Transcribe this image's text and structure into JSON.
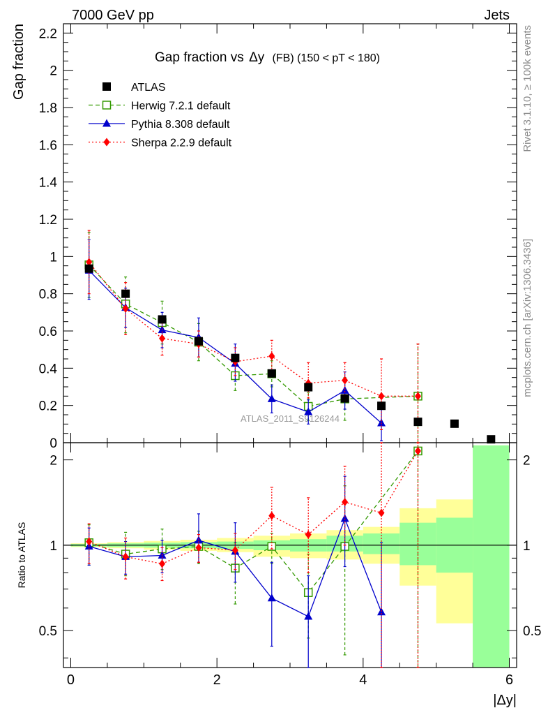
{
  "header": {
    "left": "7000 GeV pp",
    "right": "Jets"
  },
  "side_labels": {
    "rivet": "Rivet 3.1.10, ≥ 100k events",
    "mcplots": "mcplots.cern.ch [arXiv:1306.3436]"
  },
  "chart_data": {
    "type": "scatter",
    "title": "Gap fraction vs Δy (FB) (150 < pT < 180)",
    "title_main": "Gap fraction vs",
    "title_delta": "Δy",
    "title_tail": "(FB) (150 < pT < 180)",
    "watermark": "ATLAS_2011_S9126244",
    "xlabel": "|Δy|",
    "ylabel": "Gap fraction",
    "ratio_ylabel": "Ratio to ATLAS",
    "xlim": [
      -0.1,
      6.1
    ],
    "ylim": [
      0,
      2.25
    ],
    "ratio_ylim": [
      0.37,
      2.3
    ],
    "ratio_scale": "log",
    "x_ticks": [
      0,
      2,
      4,
      6
    ],
    "x_tick_labels": [
      "0",
      "2",
      "4",
      "6"
    ],
    "y_ticks": [
      0,
      0.2,
      0.4,
      0.6,
      0.8,
      1,
      1.2,
      1.4,
      1.6,
      1.8,
      2,
      2.2
    ],
    "y_tick_labels": [
      "0",
      "0.2",
      "0.4",
      "0.6",
      "0.8",
      "1",
      "1.2",
      "1.4",
      "1.6",
      "1.8",
      "2",
      "2.2"
    ],
    "ratio_ticks": [
      0.5,
      1,
      2
    ],
    "ratio_tick_labels": [
      "0.5",
      "1",
      "2"
    ],
    "legend_position": "top-left",
    "data": {
      "name": "ATLAS",
      "color": "#000000",
      "x": [
        0.25,
        0.75,
        1.25,
        1.75,
        2.25,
        2.75,
        3.25,
        3.75,
        4.25,
        4.75,
        5.25,
        5.75
      ],
      "y": [
        0.935,
        0.8,
        0.662,
        0.545,
        0.455,
        0.372,
        0.298,
        0.238,
        0.198,
        0.112,
        0.102,
        0.018
      ]
    },
    "uncertainty_band": {
      "edges": [
        0,
        0.5,
        1.0,
        1.5,
        2.0,
        2.5,
        3.0,
        3.5,
        4.0,
        4.5,
        5.0,
        5.5,
        6.0
      ],
      "stat_lo": [
        0.99,
        0.985,
        0.98,
        0.975,
        0.97,
        0.96,
        0.95,
        0.95,
        0.93,
        0.85,
        0.8,
        0.35
      ],
      "stat_hi": [
        1.01,
        1.015,
        1.02,
        1.025,
        1.03,
        1.04,
        1.05,
        1.08,
        1.1,
        1.2,
        1.25,
        2.25
      ],
      "total_lo": [
        0.985,
        0.975,
        0.965,
        0.955,
        0.945,
        0.91,
        0.9,
        0.89,
        0.86,
        0.72,
        0.53,
        0.35
      ],
      "total_hi": [
        1.015,
        1.025,
        1.035,
        1.045,
        1.06,
        1.08,
        1.1,
        1.13,
        1.16,
        1.35,
        1.45,
        2.25
      ]
    },
    "series": [
      {
        "name": "Herwig 7.2.1 default",
        "color": "#339900",
        "marker": "open-square",
        "line": "dashed",
        "x": [
          0.25,
          0.75,
          1.25,
          1.75,
          2.25,
          2.75,
          3.25,
          3.75,
          4.75
        ],
        "y": [
          0.955,
          0.745,
          0.645,
          0.54,
          0.36,
          0.37,
          0.195,
          0.235,
          0.25
        ],
        "err_lo": [
          0.78,
          0.59,
          0.53,
          0.44,
          0.28,
          0.3,
          0.12,
          0.12,
          0.0
        ],
        "err_hi": [
          1.13,
          0.89,
          0.76,
          0.64,
          0.45,
          0.44,
          0.27,
          0.35,
          0.53
        ],
        "ratio": [
          1.02,
          0.93,
          0.97,
          0.99,
          0.83,
          0.99,
          0.68,
          0.99,
          2.15
        ],
        "ratio_lo": [
          0.85,
          0.78,
          0.82,
          0.86,
          0.62,
          0.86,
          0.47,
          0.41,
          0.3
        ],
        "ratio_hi": [
          1.18,
          1.11,
          1.14,
          1.12,
          1.02,
          1.1,
          0.93,
          1.62,
          2.3
        ]
      },
      {
        "name": "Pythia 8.308 default",
        "color": "#0000cc",
        "marker": "filled-triangle",
        "line": "solid",
        "x": [
          0.25,
          0.75,
          1.25,
          1.75,
          2.25,
          2.75,
          3.25,
          3.75,
          4.25
        ],
        "y": [
          0.925,
          0.725,
          0.605,
          0.565,
          0.425,
          0.235,
          0.165,
          0.28,
          0.105
        ],
        "err_lo": [
          0.77,
          0.62,
          0.51,
          0.46,
          0.33,
          0.16,
          0.1,
          0.18,
          0.01
        ],
        "err_hi": [
          1.09,
          0.83,
          0.7,
          0.67,
          0.53,
          0.31,
          0.23,
          0.38,
          0.2
        ],
        "ratio": [
          0.99,
          0.91,
          0.92,
          1.04,
          0.95,
          0.65,
          0.56,
          1.24,
          0.58
        ],
        "ratio_lo": [
          0.85,
          0.79,
          0.8,
          0.87,
          0.74,
          0.44,
          0.35,
          0.84,
          0.3
        ],
        "ratio_hi": [
          1.15,
          1.03,
          1.04,
          1.29,
          1.2,
          0.87,
          0.78,
          1.75,
          1.02
        ]
      },
      {
        "name": "Sherpa 2.2.9 default",
        "color": "#ff0000",
        "marker": "filled-diamond",
        "line": "dotted",
        "x": [
          0.25,
          0.75,
          1.25,
          1.75,
          2.25,
          2.75,
          3.25,
          3.75,
          4.25,
          4.75
        ],
        "y": [
          0.97,
          0.72,
          0.56,
          0.53,
          0.435,
          0.465,
          0.32,
          0.335,
          0.25,
          0.25
        ],
        "err_lo": [
          0.8,
          0.58,
          0.47,
          0.46,
          0.36,
          0.38,
          0.24,
          0.24,
          0.07,
          0.0
        ],
        "err_hi": [
          1.14,
          0.86,
          0.65,
          0.6,
          0.51,
          0.55,
          0.43,
          0.43,
          0.45,
          0.53
        ],
        "ratio": [
          1.03,
          0.91,
          0.86,
          0.98,
          0.96,
          1.27,
          1.09,
          1.42,
          1.3,
          2.15
        ],
        "ratio_lo": [
          0.86,
          0.76,
          0.75,
          0.87,
          0.82,
          0.97,
          0.8,
          1.0,
          0.37,
          0.3
        ],
        "ratio_hi": [
          1.19,
          1.06,
          0.98,
          1.09,
          1.1,
          1.6,
          1.47,
          1.9,
          2.3,
          2.3
        ]
      }
    ]
  }
}
